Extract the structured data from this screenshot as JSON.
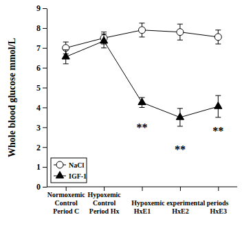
{
  "chart_data": {
    "type": "line",
    "y_label": "Whole blood glucose mmol/L",
    "categories": [
      "Normoxemic\nControl\nPeriod C",
      "Hypoxemic\nControl\nPeriod Hx",
      "HxE1",
      "HxE2",
      "HxE3"
    ],
    "group_label": "Hypoxemic experimental periods",
    "series": [
      {
        "name": "NaCl",
        "color": "#000000",
        "marker": "open_circle",
        "line_style": "solid",
        "values": [
          7.0,
          7.5,
          7.9,
          7.8,
          7.55
        ],
        "errors": [
          0.3,
          0.3,
          0.35,
          0.4,
          0.35
        ]
      },
      {
        "name": "IGF-1",
        "color": "#000000",
        "marker": "triangle",
        "line_style": "solid",
        "values": [
          6.55,
          7.35,
          4.25,
          3.5,
          4.05
        ],
        "errors": [
          0.35,
          0.35,
          0.25,
          0.45,
          0.55
        ]
      }
    ],
    "annotations": [
      {
        "text": "**",
        "x": 2,
        "y": 3.1
      },
      {
        "text": "**",
        "x": 3,
        "y": 2.0
      },
      {
        "text": "**",
        "x": 4,
        "y": 2.95
      }
    ],
    "ylim": [
      0,
      9
    ],
    "yticks": [
      0,
      1,
      2,
      3,
      4,
      5,
      6,
      7,
      8,
      9
    ],
    "grid": false,
    "legend": "lower left"
  }
}
